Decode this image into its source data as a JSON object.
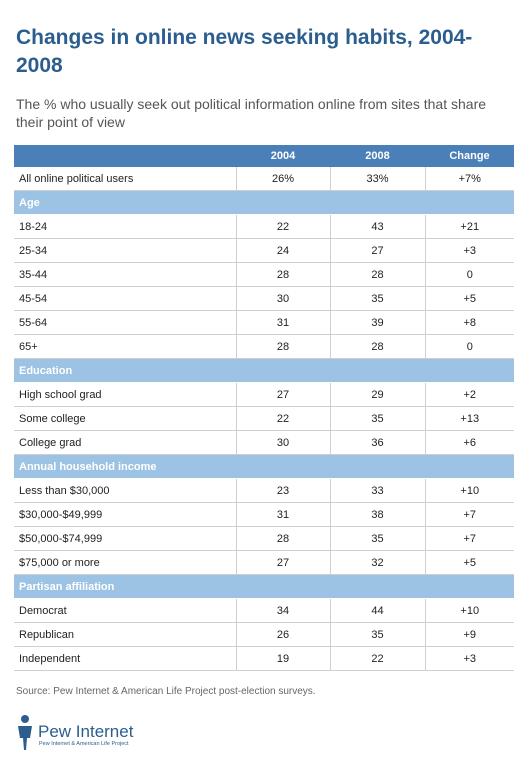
{
  "header": {
    "title": "Changes in online news seeking habits, 2004-2008",
    "subtitle": "The % who usually seek out political information online from sites that share their point of view"
  },
  "table": {
    "columns": [
      "2004",
      "2008",
      "Change"
    ],
    "top_row": [
      "All online political users",
      "26%",
      "33%",
      "+7%"
    ],
    "sections": [
      {
        "title": "Age",
        "rows": [
          [
            "18-24",
            "22",
            "43",
            "+21"
          ],
          [
            "25-34",
            "24",
            "27",
            "+3"
          ],
          [
            "35-44",
            "28",
            "28",
            "0"
          ],
          [
            "45-54",
            "30",
            "35",
            "+5"
          ],
          [
            "55-64",
            "31",
            "39",
            "+8"
          ],
          [
            "65+",
            "28",
            "28",
            "0"
          ]
        ]
      },
      {
        "title": "Education",
        "rows": [
          [
            "High school grad",
            "27",
            "29",
            "+2"
          ],
          [
            "Some college",
            "22",
            "35",
            "+13"
          ],
          [
            "College grad",
            "30",
            "36",
            "+6"
          ]
        ]
      },
      {
        "title": "Annual household income",
        "rows": [
          [
            "Less than $30,000",
            "23",
            "33",
            "+10"
          ],
          [
            "$30,000-$49,999",
            "31",
            "38",
            "+7"
          ],
          [
            "$50,000-$74,999",
            "28",
            "35",
            "+7"
          ],
          [
            "$75,000 or more",
            "27",
            "32",
            "+5"
          ]
        ]
      },
      {
        "title": "Partisan affiliation",
        "rows": [
          [
            "Democrat",
            "34",
            "44",
            "+10"
          ],
          [
            "Republican",
            "26",
            "35",
            "+9"
          ],
          [
            "Independent",
            "19",
            "22",
            "+3"
          ]
        ]
      }
    ]
  },
  "footer": {
    "source": "Source: Pew Internet & American Life Project post-election surveys.",
    "logo_name": "Pew Internet",
    "logo_tagline": "Pew Internet & American Life Project"
  }
}
